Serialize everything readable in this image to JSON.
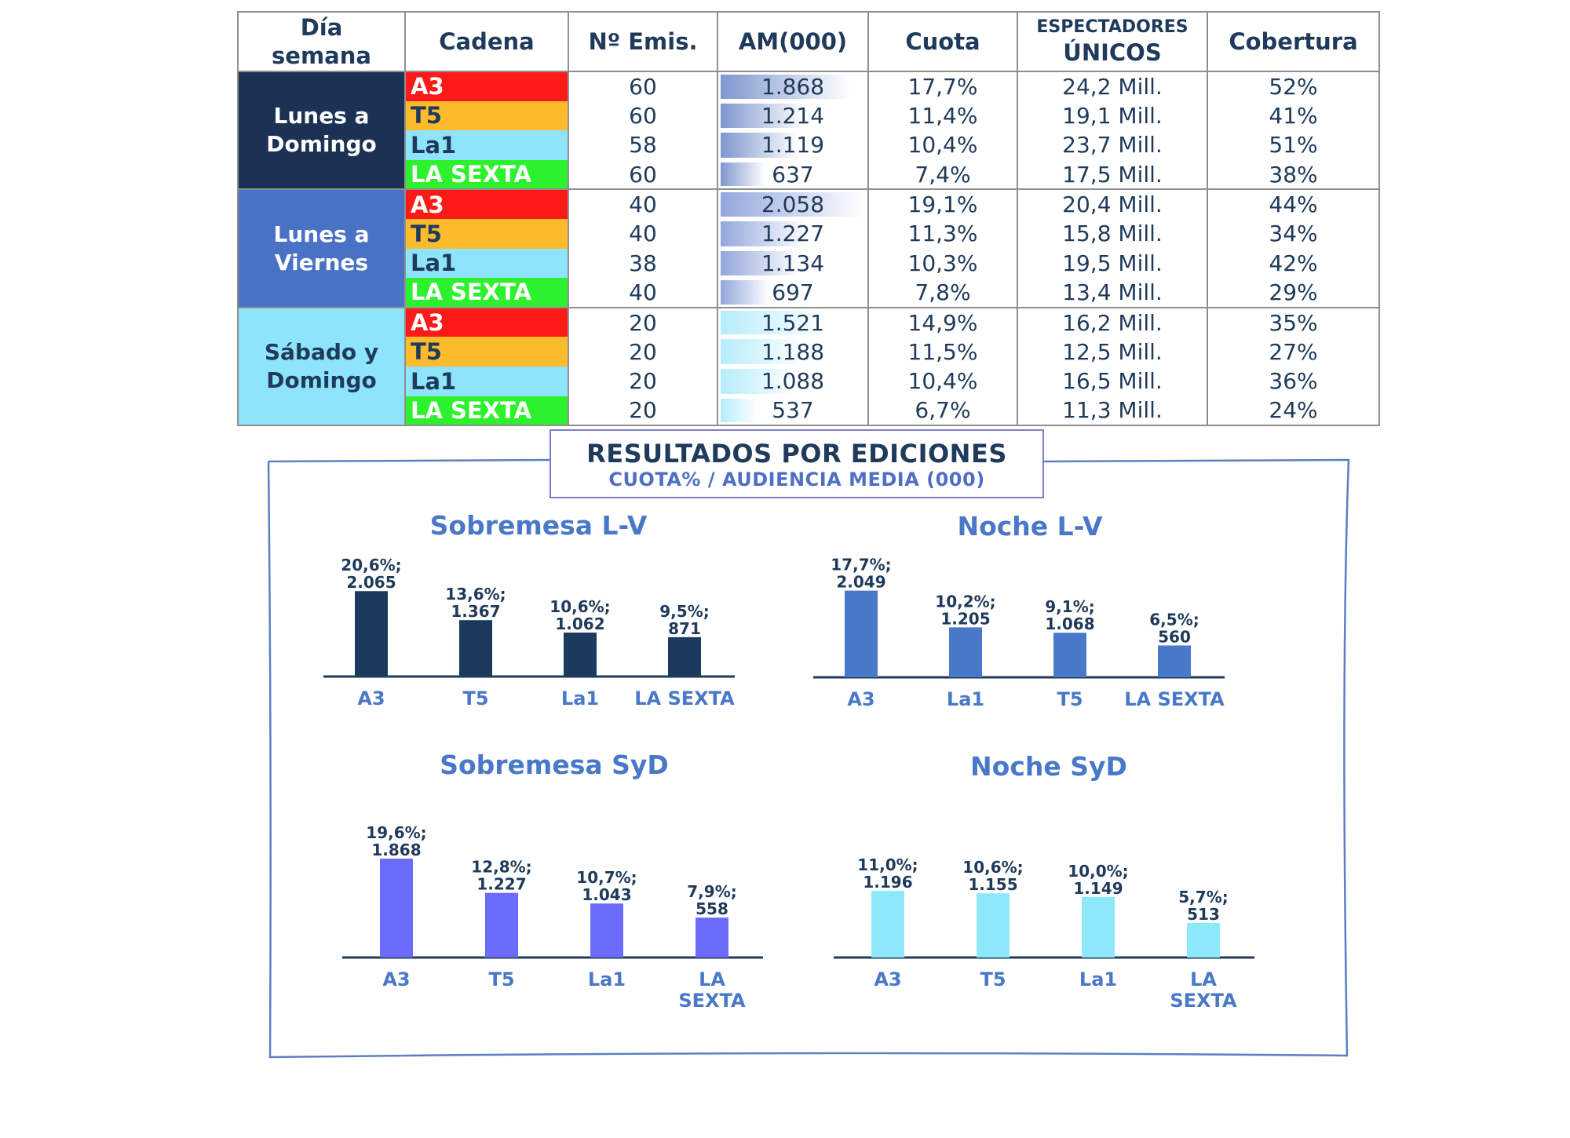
{
  "table": {
    "headers": {
      "dia": [
        "Día",
        "semana"
      ],
      "cadena": "Cadena",
      "emis": "Nº Emis.",
      "am": "AM(000)",
      "cuota": "Cuota",
      "espectadores": [
        "ESPECTADORES",
        "ÚNICOS"
      ],
      "cobertura": "Cobertura"
    },
    "colors": {
      "A3": "#ff1a1a",
      "T5": "#fbbb2c",
      "La1": "#8ee4fb",
      "LA SEXTA": "#2ef12e"
    },
    "groups": [
      {
        "label": [
          "Lunes a",
          "Domingo"
        ],
        "bg": "#1c3254",
        "light": false,
        "bar_color": "#7f97cf",
        "rows": [
          {
            "cadena": "A3",
            "emis": "60",
            "am": "1.868",
            "am_value": 1868,
            "cuota": "17,7%",
            "espectadores": "24,2 Mill.",
            "cobertura": "52%"
          },
          {
            "cadena": "T5",
            "emis": "60",
            "am": "1.214",
            "am_value": 1214,
            "cuota": "11,4%",
            "espectadores": "19,1 Mill.",
            "cobertura": "41%"
          },
          {
            "cadena": "La1",
            "emis": "58",
            "am": "1.119",
            "am_value": 1119,
            "cuota": "10,4%",
            "espectadores": "23,7 Mill.",
            "cobertura": "51%"
          },
          {
            "cadena": "LA SEXTA",
            "emis": "60",
            "am": "637",
            "am_value": 637,
            "cuota": "7,4%",
            "espectadores": "17,5 Mill.",
            "cobertura": "38%"
          }
        ]
      },
      {
        "label": [
          "Lunes a",
          "Viernes"
        ],
        "bg": "#4a72c4",
        "light": false,
        "bar_color": "#93a7dc",
        "rows": [
          {
            "cadena": "A3",
            "emis": "40",
            "am": "2.058",
            "am_value": 2058,
            "cuota": "19,1%",
            "espectadores": "20,4 Mill.",
            "cobertura": "44%"
          },
          {
            "cadena": "T5",
            "emis": "40",
            "am": "1.227",
            "am_value": 1227,
            "cuota": "11,3%",
            "espectadores": "15,8 Mill.",
            "cobertura": "34%"
          },
          {
            "cadena": "La1",
            "emis": "38",
            "am": "1.134",
            "am_value": 1134,
            "cuota": "10,3%",
            "espectadores": "19,5 Mill.",
            "cobertura": "42%"
          },
          {
            "cadena": "LA SEXTA",
            "emis": "40",
            "am": "697",
            "am_value": 697,
            "cuota": "7,8%",
            "espectadores": "13,4 Mill.",
            "cobertura": "29%"
          }
        ]
      },
      {
        "label": [
          "Sábado y",
          "Domingo"
        ],
        "bg": "#8ee4fb",
        "light": true,
        "bar_color": "#b6ecfb",
        "rows": [
          {
            "cadena": "A3",
            "emis": "20",
            "am": "1.521",
            "am_value": 1521,
            "cuota": "14,9%",
            "espectadores": "16,2 Mill.",
            "cobertura": "35%"
          },
          {
            "cadena": "T5",
            "emis": "20",
            "am": "1.188",
            "am_value": 1188,
            "cuota": "11,5%",
            "espectadores": "12,5 Mill.",
            "cobertura": "27%"
          },
          {
            "cadena": "La1",
            "emis": "20",
            "am": "1.088",
            "am_value": 1088,
            "cuota": "10,4%",
            "espectadores": "16,5 Mill.",
            "cobertura": "36%"
          },
          {
            "cadena": "LA SEXTA",
            "emis": "20",
            "am": "537",
            "am_value": 537,
            "cuota": "6,7%",
            "espectadores": "11,3 Mill.",
            "cobertura": "24%"
          }
        ]
      }
    ],
    "am_max": 2058
  },
  "section": {
    "title": "RESULTADOS POR EDICIONES",
    "subtitle": "CUOTA% / AUDIENCIA MEDIA (000)"
  },
  "chart_data": [
    {
      "type": "bar",
      "title": "Sobremesa L-V",
      "color": "#1c3a5e",
      "categories": [
        "A3",
        "T5",
        "La1",
        "LA SEXTA"
      ],
      "values": [
        20.6,
        13.6,
        10.6,
        9.5
      ],
      "labels": [
        [
          "20,6%;",
          "2.065"
        ],
        [
          "13,6%;",
          "1.367"
        ],
        [
          "10,6%;",
          "1.062"
        ],
        [
          "9,5%;",
          "871"
        ]
      ],
      "ylim": [
        0,
        25
      ]
    },
    {
      "type": "bar",
      "title": "Noche L-V",
      "color": "#4a78c8",
      "categories": [
        "A3",
        "La1",
        "T5",
        "LA SEXTA"
      ],
      "values": [
        17.7,
        10.2,
        9.1,
        6.5
      ],
      "labels": [
        [
          "17,7%;",
          "2.049"
        ],
        [
          "10,2%;",
          "1.205"
        ],
        [
          "9,1%;",
          "1.068"
        ],
        [
          "6,5%;",
          "560"
        ]
      ],
      "ylim": [
        0,
        21
      ]
    },
    {
      "type": "bar",
      "title": "Sobremesa SyD",
      "color": "#6a6bfa",
      "categories": [
        "A3",
        "T5",
        "La1",
        [
          "LA",
          "SEXTA"
        ]
      ],
      "values": [
        19.6,
        12.8,
        10.7,
        7.9
      ],
      "labels": [
        [
          "19,6%;",
          "1.868"
        ],
        [
          "12,8%;",
          "1.227"
        ],
        [
          "10,7%;",
          "1.043"
        ],
        [
          "7,9%;",
          "558"
        ]
      ],
      "ylim": [
        0,
        21
      ]
    },
    {
      "type": "bar",
      "title": "Noche SyD",
      "color": "#8ee8fb",
      "categories": [
        "A3",
        "T5",
        "La1",
        [
          "LA",
          "SEXTA"
        ]
      ],
      "values": [
        11.0,
        10.6,
        10.0,
        5.7
      ],
      "labels": [
        [
          "11,0%;",
          "1.196"
        ],
        [
          "10,6%;",
          "1.155"
        ],
        [
          "10,0%;",
          "1.149"
        ],
        [
          "5,7%;",
          "513"
        ]
      ],
      "ylim": [
        0,
        17.5
      ]
    }
  ]
}
